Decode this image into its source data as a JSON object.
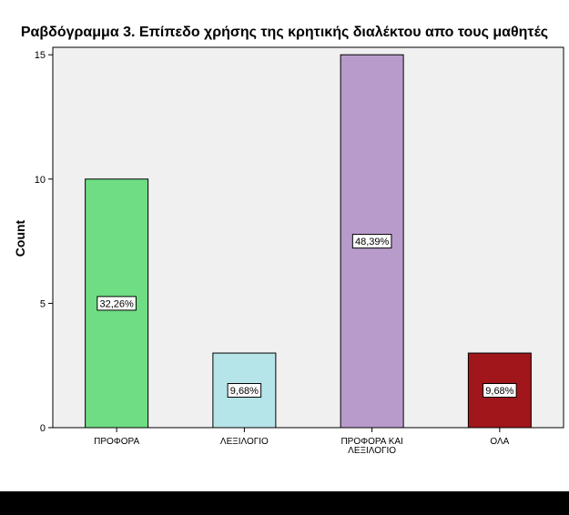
{
  "chart_data": {
    "type": "bar",
    "title": "Ραβδόγραμμα 3. Επίπεδο χρήσης της κρητικής διαλέκτου απο τους μαθητές",
    "xlabel": "",
    "ylabel": "Count",
    "ylim": [
      0,
      15.3
    ],
    "yticks": [
      0,
      5,
      10,
      15
    ],
    "grid": false,
    "categories": [
      [
        "ΠΡΟΦΟΡΑ"
      ],
      [
        "ΛΕΞΙΛΟΓΙΟ"
      ],
      [
        "ΠΡΟΦΟΡΑ ΚΑΙ",
        "ΛΕΞΙΛΟΓΙΟ"
      ],
      [
        "ΟΛΑ"
      ]
    ],
    "values": [
      10,
      3,
      15,
      3
    ],
    "data_labels": [
      "32,26%",
      "9,68%",
      "48,39%",
      "9,68%"
    ],
    "colors": [
      "#6fdd84",
      "#b6e5e9",
      "#b89bcb",
      "#a0161b"
    ],
    "plot_background": "#f0f0f0"
  }
}
